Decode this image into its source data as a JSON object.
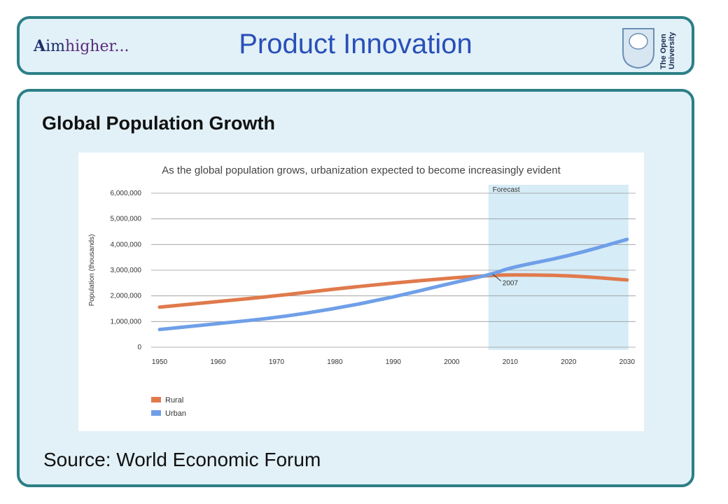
{
  "header": {
    "logo_left": {
      "aim_first": "A",
      "aim_rest": "im",
      "higher": "higher..."
    },
    "title": "Product Innovation",
    "logo_right": {
      "line1": "The Open",
      "line2": "University"
    }
  },
  "section": {
    "heading": "Global Population Growth",
    "source": "Source: World Economic Forum"
  },
  "colors": {
    "accent_border": "#2d7f86",
    "panel_bg": "#e2f1f8",
    "title_blue": "#2a4fb8",
    "rural": "#e07a4c",
    "urban": "#6f9fe8",
    "forecast_shade": "#d6ecf7"
  },
  "chart_data": {
    "type": "line",
    "title": "As the global population grows, urbanization expected to become increasingly evident",
    "ylabel": "Population (thousands)",
    "xlabel": "",
    "x_ticks": [
      1950,
      1960,
      1970,
      1980,
      1990,
      2000,
      2010,
      2020,
      2030
    ],
    "y_ticks": [
      0,
      1000000,
      2000000,
      3000000,
      4000000,
      5000000,
      6000000
    ],
    "y_tick_labels": [
      "0",
      "1,000,000",
      "2,000,000",
      "3,000,000",
      "4,000,000",
      "5,000,000",
      "6,000,000"
    ],
    "xlim": [
      1950,
      2030
    ],
    "ylim": [
      0,
      6000000
    ],
    "grid": "horizontal",
    "forecast_region": {
      "label": "Forecast",
      "start": 2007,
      "end": 2030
    },
    "annotation": {
      "text": "2007",
      "x": 2007,
      "y": 2900000
    },
    "series": [
      {
        "name": "Rural",
        "color": "#e07a4c",
        "x": [
          1950,
          1960,
          1970,
          1980,
          1990,
          2000,
          2007,
          2010,
          2020,
          2030
        ],
        "values": [
          1560000,
          1780000,
          2000000,
          2270000,
          2500000,
          2700000,
          2800000,
          2820000,
          2800000,
          2620000
        ]
      },
      {
        "name": "Urban",
        "color": "#6f9fe8",
        "x": [
          1950,
          1960,
          1970,
          1980,
          1990,
          2000,
          2007,
          2010,
          2020,
          2030
        ],
        "values": [
          690000,
          920000,
          1150000,
          1500000,
          1950000,
          2500000,
          2850000,
          3100000,
          3550000,
          4200000
        ]
      }
    ],
    "legend": {
      "placement": "bottom-left"
    }
  }
}
